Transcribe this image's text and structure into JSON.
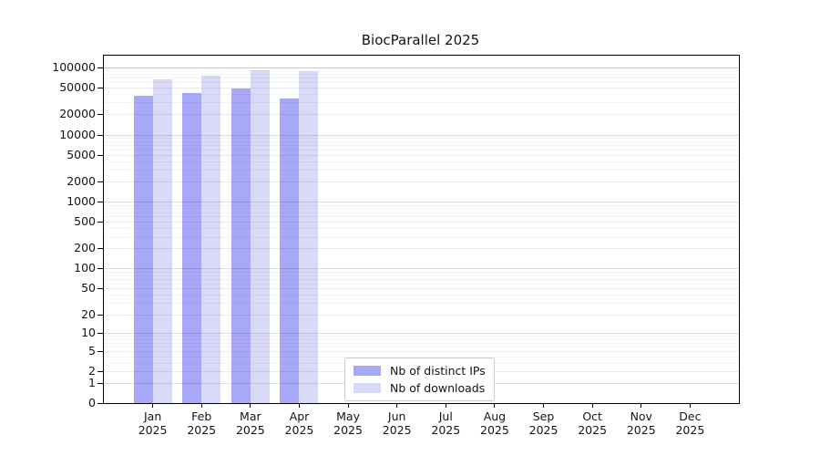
{
  "chart_data": {
    "type": "bar",
    "title": "BiocParallel 2025",
    "categories": [
      "Jan",
      "Feb",
      "Mar",
      "Apr",
      "May",
      "Jun",
      "Jul",
      "Aug",
      "Sep",
      "Oct",
      "Nov",
      "Dec"
    ],
    "category_year": "2025",
    "series": [
      {
        "name": "Nb of distinct IPs",
        "color": "#a8a8f8",
        "values": [
          37500,
          42000,
          48000,
          34000,
          null,
          null,
          null,
          null,
          null,
          null,
          null,
          null
        ]
      },
      {
        "name": "Nb of downloads",
        "color": "#d9d9f8",
        "values": [
          66000,
          75000,
          90000,
          87000,
          null,
          null,
          null,
          null,
          null,
          null,
          null,
          null
        ]
      }
    ],
    "yscale": "log1p",
    "ylim": [
      0,
      150000
    ],
    "y_ticks": [
      0,
      1,
      2,
      5,
      10,
      20,
      50,
      100,
      200,
      500,
      1000,
      2000,
      5000,
      10000,
      20000,
      50000,
      100000
    ],
    "xlabel": "",
    "ylabel": "",
    "grid": true,
    "legend_position": "bottom-center-inside",
    "background_color": "#ffffff",
    "axis_color": "#000000"
  }
}
